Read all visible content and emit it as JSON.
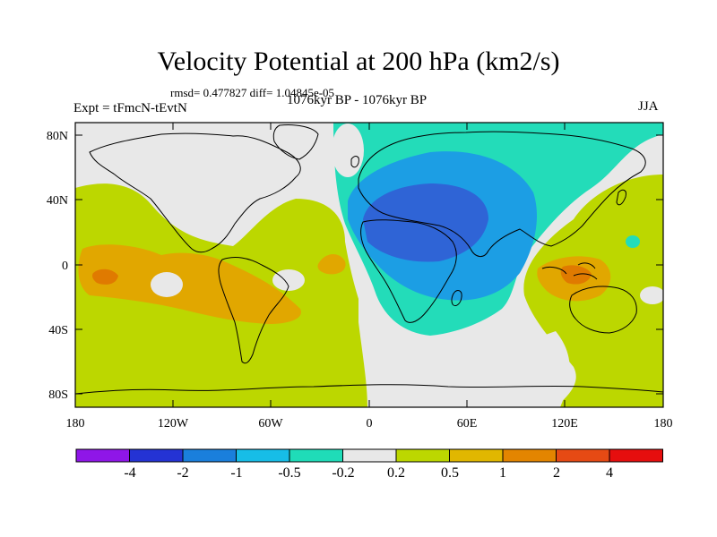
{
  "title": "Velocity Potential at 200 hPa (km2/s)",
  "stats": "rmsd= 0.477827 diff= 1.04845e-05",
  "experiment": "Expt = tFmcN-tEvtN",
  "period": "1076kyr BP - 1076kyr BP",
  "season": "JJA",
  "lat_labels": [
    "80N",
    "40N",
    "0",
    "40S",
    "80S"
  ],
  "lon_labels": [
    "180",
    "120W",
    "60W",
    "0",
    "60E",
    "120E",
    "180"
  ],
  "colorbar": {
    "labels": [
      "-4",
      "-2",
      "-1",
      "-0.5",
      "-0.2",
      "0.2",
      "0.5",
      "1",
      "2",
      "4"
    ],
    "colors": [
      "#8f16e8",
      "#2433d4",
      "#1a7fdc",
      "#17bde7",
      "#1fdcb8",
      "#e8e8e8",
      "#bcd700",
      "#e1b700",
      "#e38500",
      "#e64a14",
      "#e60e0e"
    ]
  },
  "field_colors": {
    "neg_strong": "#2f64d6",
    "neg_mid": "#1c9ee4",
    "neg_weak": "#23dcb9",
    "neutral": "#e8e8e8",
    "pos_weak": "#bcd700",
    "pos_mid": "#e1a700",
    "pos_strong": "#e07a00"
  }
}
